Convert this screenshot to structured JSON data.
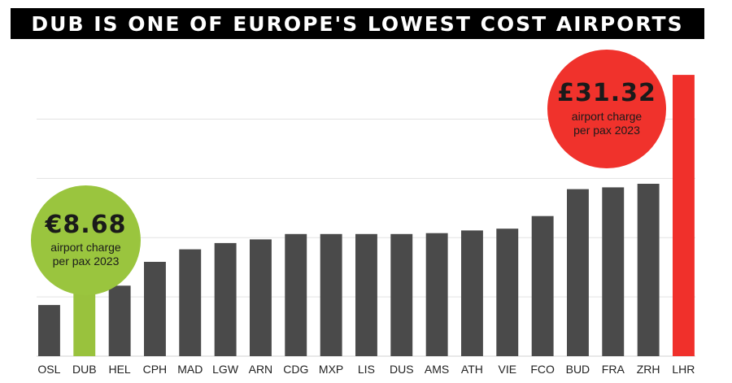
{
  "title": "DUB is one of Europe's lowest cost airports",
  "chart_data": {
    "type": "bar",
    "categories": [
      "OSL",
      "DUB",
      "HEL",
      "CPH",
      "MAD",
      "LGW",
      "ARN",
      "CDG",
      "MXP",
      "LIS",
      "DUS",
      "AMS",
      "ATH",
      "VIE",
      "FCO",
      "BUD",
      "FRA",
      "ZRH",
      "LHR"
    ],
    "values": [
      5.7,
      7.25,
      7.85,
      10.5,
      11.9,
      12.6,
      13.0,
      13.6,
      13.6,
      13.6,
      13.6,
      13.7,
      14.0,
      14.2,
      15.6,
      18.6,
      18.8,
      19.2,
      31.32
    ],
    "highlight": {
      "DUB": "#99c23d",
      "LHR": "#f0302b"
    },
    "bar_color": "#4a4a4a",
    "ylim": [
      0,
      32.6
    ],
    "gridlines": [
      6.6,
      13.2,
      19.8,
      26.4
    ],
    "grid": true,
    "xlabel": "",
    "ylabel": ""
  },
  "callouts": {
    "dub": {
      "value": "€8.68",
      "label": "airport charge per pax 2023",
      "color": "#9ac53e"
    },
    "lhr": {
      "value": "£31.32",
      "label": "airport charge per pax 2023",
      "color": "#f0322c"
    }
  }
}
